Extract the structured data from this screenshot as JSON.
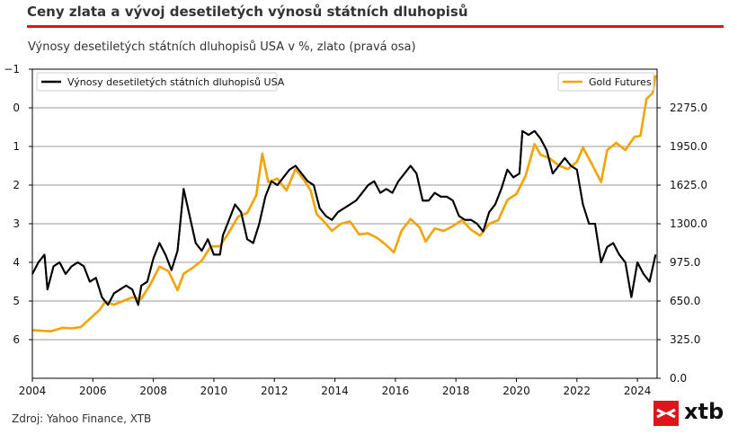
{
  "header": {
    "title": "Ceny zlata a vývoj desetiletých výnosů státních dluhopisů",
    "subtitle": "Výnosy desetiletých státních dluhopisů USA v %, zlato (pravá osa)"
  },
  "footer": {
    "source": "Zdroj: Yahoo Finance, XTB",
    "logo_text": "xtb"
  },
  "colors": {
    "accent": "#e0141b",
    "yield": "#000000",
    "gold": "#f5a300"
  },
  "chart_data": {
    "type": "line",
    "x_ticks": [
      "2004",
      "2006",
      "2008",
      "2010",
      "2012",
      "2014",
      "2016",
      "2018",
      "2020",
      "2022",
      "2024"
    ],
    "left_axis": {
      "ticks": [
        "−1",
        "0",
        "1",
        "2",
        "3",
        "4",
        "5",
        "6"
      ],
      "range": [
        -1,
        7
      ],
      "inverted": true
    },
    "right_axis": {
      "ticks": [
        "0.0",
        "325.0",
        "650.0",
        "975.0",
        "1300.0",
        "1625.0",
        "1950.0",
        "2275.0"
      ],
      "range": [
        0,
        2600
      ]
    },
    "grid": "horizontal",
    "legend_left": "top-left",
    "legend_right": "top-right",
    "series": [
      {
        "name": "Výnosy desetiletých státních dluhopisů USA",
        "axis": "left",
        "color": "#000000",
        "x": [
          2004.0,
          2004.2,
          2004.4,
          2004.5,
          2004.7,
          2004.9,
          2005.1,
          2005.3,
          2005.5,
          2005.7,
          2005.9,
          2006.1,
          2006.3,
          2006.5,
          2006.7,
          2006.9,
          2007.1,
          2007.3,
          2007.5,
          2007.6,
          2007.8,
          2008.0,
          2008.2,
          2008.4,
          2008.6,
          2008.8,
          2008.95,
          2009.0,
          2009.2,
          2009.4,
          2009.6,
          2009.8,
          2010.0,
          2010.2,
          2010.3,
          2010.5,
          2010.7,
          2010.9,
          2011.1,
          2011.3,
          2011.5,
          2011.7,
          2011.9,
          2012.1,
          2012.3,
          2012.5,
          2012.7,
          2012.9,
          2013.1,
          2013.3,
          2013.5,
          2013.7,
          2013.9,
          2014.1,
          2014.3,
          2014.5,
          2014.7,
          2014.9,
          2015.1,
          2015.3,
          2015.5,
          2015.7,
          2015.9,
          2016.1,
          2016.3,
          2016.5,
          2016.7,
          2016.9,
          2017.1,
          2017.3,
          2017.5,
          2017.7,
          2017.9,
          2018.1,
          2018.3,
          2018.5,
          2018.7,
          2018.9,
          2019.1,
          2019.3,
          2019.5,
          2019.7,
          2019.9,
          2020.1,
          2020.2,
          2020.4,
          2020.6,
          2020.8,
          2021.0,
          2021.2,
          2021.4,
          2021.6,
          2021.8,
          2022.0,
          2022.2,
          2022.4,
          2022.6,
          2022.8,
          2023.0,
          2023.2,
          2023.4,
          2023.6,
          2023.8,
          2024.0,
          2024.2,
          2024.4,
          2024.6
        ],
        "y": [
          4.3,
          4.0,
          3.8,
          4.7,
          4.1,
          4.0,
          4.3,
          4.1,
          4.0,
          4.1,
          4.5,
          4.4,
          4.9,
          5.1,
          4.8,
          4.7,
          4.6,
          4.7,
          5.1,
          4.6,
          4.5,
          3.9,
          3.5,
          3.8,
          4.2,
          3.7,
          2.5,
          2.1,
          2.8,
          3.5,
          3.7,
          3.4,
          3.8,
          3.8,
          3.3,
          2.9,
          2.5,
          2.7,
          3.4,
          3.5,
          3.0,
          2.3,
          1.9,
          2.0,
          1.8,
          1.6,
          1.5,
          1.7,
          1.9,
          2.0,
          2.6,
          2.8,
          2.9,
          2.7,
          2.6,
          2.5,
          2.4,
          2.2,
          2.0,
          1.9,
          2.2,
          2.1,
          2.2,
          1.9,
          1.7,
          1.5,
          1.7,
          2.4,
          2.4,
          2.2,
          2.3,
          2.3,
          2.4,
          2.8,
          2.9,
          2.9,
          3.0,
          3.2,
          2.7,
          2.5,
          2.1,
          1.6,
          1.8,
          1.7,
          0.6,
          0.7,
          0.6,
          0.8,
          1.1,
          1.7,
          1.5,
          1.3,
          1.5,
          1.6,
          2.5,
          3.0,
          3.0,
          4.0,
          3.6,
          3.5,
          3.8,
          4.0,
          4.9,
          4.0,
          4.3,
          4.5,
          3.8
        ]
      },
      {
        "name": "Gold Futures",
        "axis": "right",
        "color": "#f5a300",
        "x": [
          2004.0,
          2004.3,
          2004.6,
          2005.0,
          2005.3,
          2005.6,
          2005.9,
          2006.2,
          2006.4,
          2006.7,
          2007.0,
          2007.3,
          2007.6,
          2007.9,
          2008.2,
          2008.5,
          2008.8,
          2009.0,
          2009.3,
          2009.6,
          2009.9,
          2010.2,
          2010.5,
          2010.8,
          2011.1,
          2011.4,
          2011.6,
          2011.8,
          2012.1,
          2012.4,
          2012.7,
          2013.0,
          2013.2,
          2013.4,
          2013.6,
          2013.9,
          2014.2,
          2014.5,
          2014.8,
          2015.1,
          2015.4,
          2015.7,
          2015.95,
          2016.2,
          2016.5,
          2016.8,
          2017.0,
          2017.3,
          2017.6,
          2017.9,
          2018.2,
          2018.5,
          2018.8,
          2019.1,
          2019.4,
          2019.7,
          2020.0,
          2020.3,
          2020.6,
          2020.8,
          2021.1,
          2021.4,
          2021.7,
          2022.0,
          2022.2,
          2022.5,
          2022.8,
          2023.0,
          2023.3,
          2023.6,
          2023.9,
          2024.1,
          2024.3,
          2024.5,
          2024.6
        ],
        "y": [
          405,
          400,
          395,
          425,
          420,
          430,
          500,
          570,
          640,
          620,
          650,
          680,
          670,
          790,
          940,
          900,
          740,
          880,
          930,
          990,
          1110,
          1110,
          1230,
          1360,
          1390,
          1540,
          1890,
          1650,
          1680,
          1580,
          1760,
          1660,
          1580,
          1380,
          1330,
          1240,
          1300,
          1320,
          1210,
          1220,
          1180,
          1120,
          1060,
          1240,
          1340,
          1270,
          1150,
          1260,
          1240,
          1280,
          1330,
          1250,
          1200,
          1300,
          1330,
          1500,
          1550,
          1700,
          1970,
          1880,
          1850,
          1790,
          1760,
          1820,
          1940,
          1800,
          1650,
          1920,
          1980,
          1920,
          2030,
          2040,
          2350,
          2400,
          2550
        ]
      }
    ]
  }
}
